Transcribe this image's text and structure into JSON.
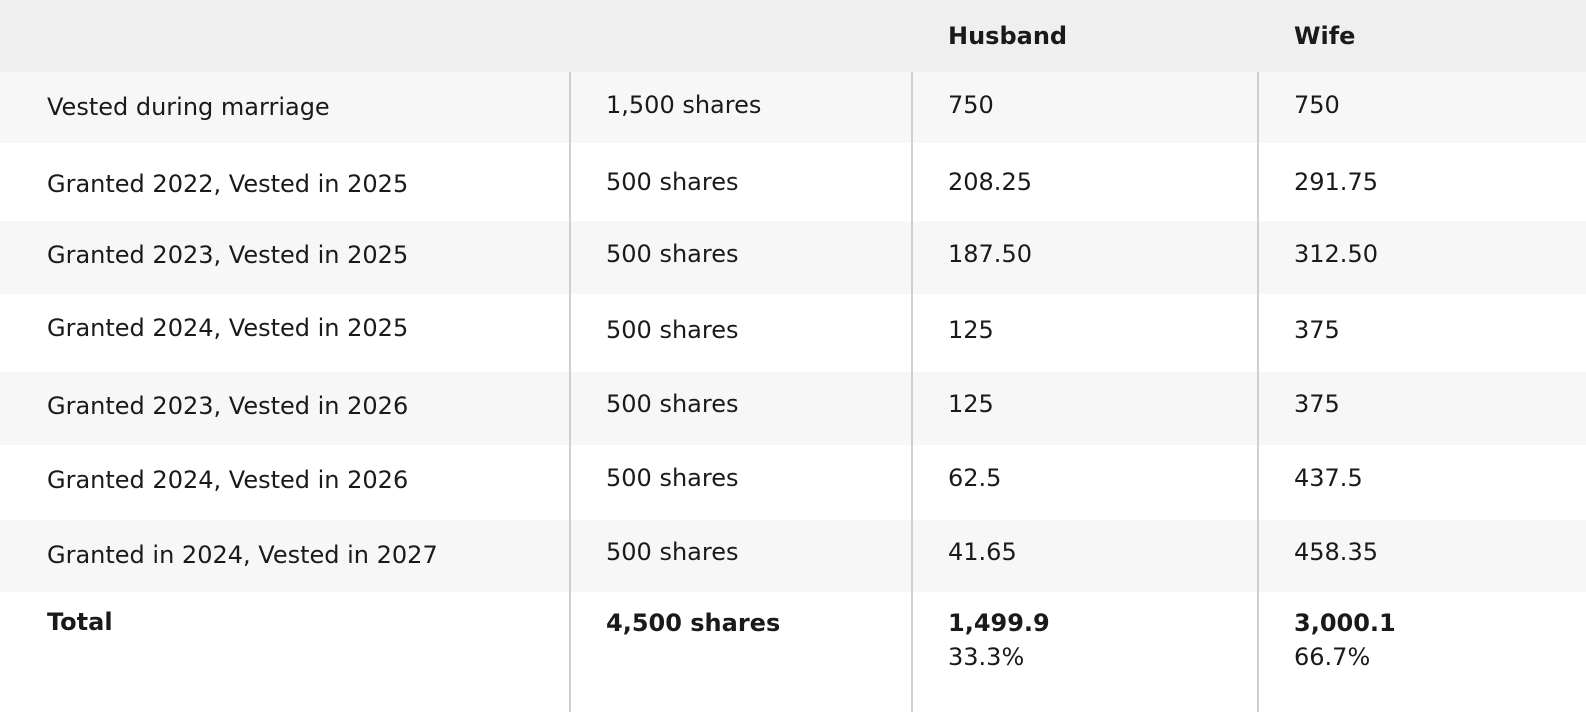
{
  "header": {
    "col1": "",
    "col2": "",
    "col3": "Husband",
    "col4": "Wife"
  },
  "rows": [
    {
      "label": "Vested during marriage",
      "shares": "1,500 shares",
      "husband": "750",
      "wife": "750"
    },
    {
      "label": "Granted 2022, Vested in 2025",
      "shares": "500 shares",
      "husband": "208.25",
      "wife": "291.75"
    },
    {
      "label": "Granted 2023, Vested in 2025",
      "shares": "500 shares",
      "husband": "187.50",
      "wife": "312.50"
    },
    {
      "label": "Granted 2024, Vested in 2025",
      "shares": "500 shares",
      "husband": "125",
      "wife": "375"
    },
    {
      "label": "Granted 2023, Vested in 2026",
      "shares": "500 shares",
      "husband": "125",
      "wife": "375"
    },
    {
      "label": "Granted 2024, Vested in 2026",
      "shares": "500 shares",
      "husband": "62.5",
      "wife": "437.5"
    },
    {
      "label": "Granted in 2024, Vested in 2027",
      "shares": "500 shares",
      "husband": "41.65",
      "wife": "458.35"
    }
  ],
  "total": {
    "label": "Total",
    "shares": "4,500 shares",
    "husband": "1,499.9",
    "husband_pct": "33.3%",
    "wife": "3,000.1",
    "wife_pct": "66.7%"
  }
}
